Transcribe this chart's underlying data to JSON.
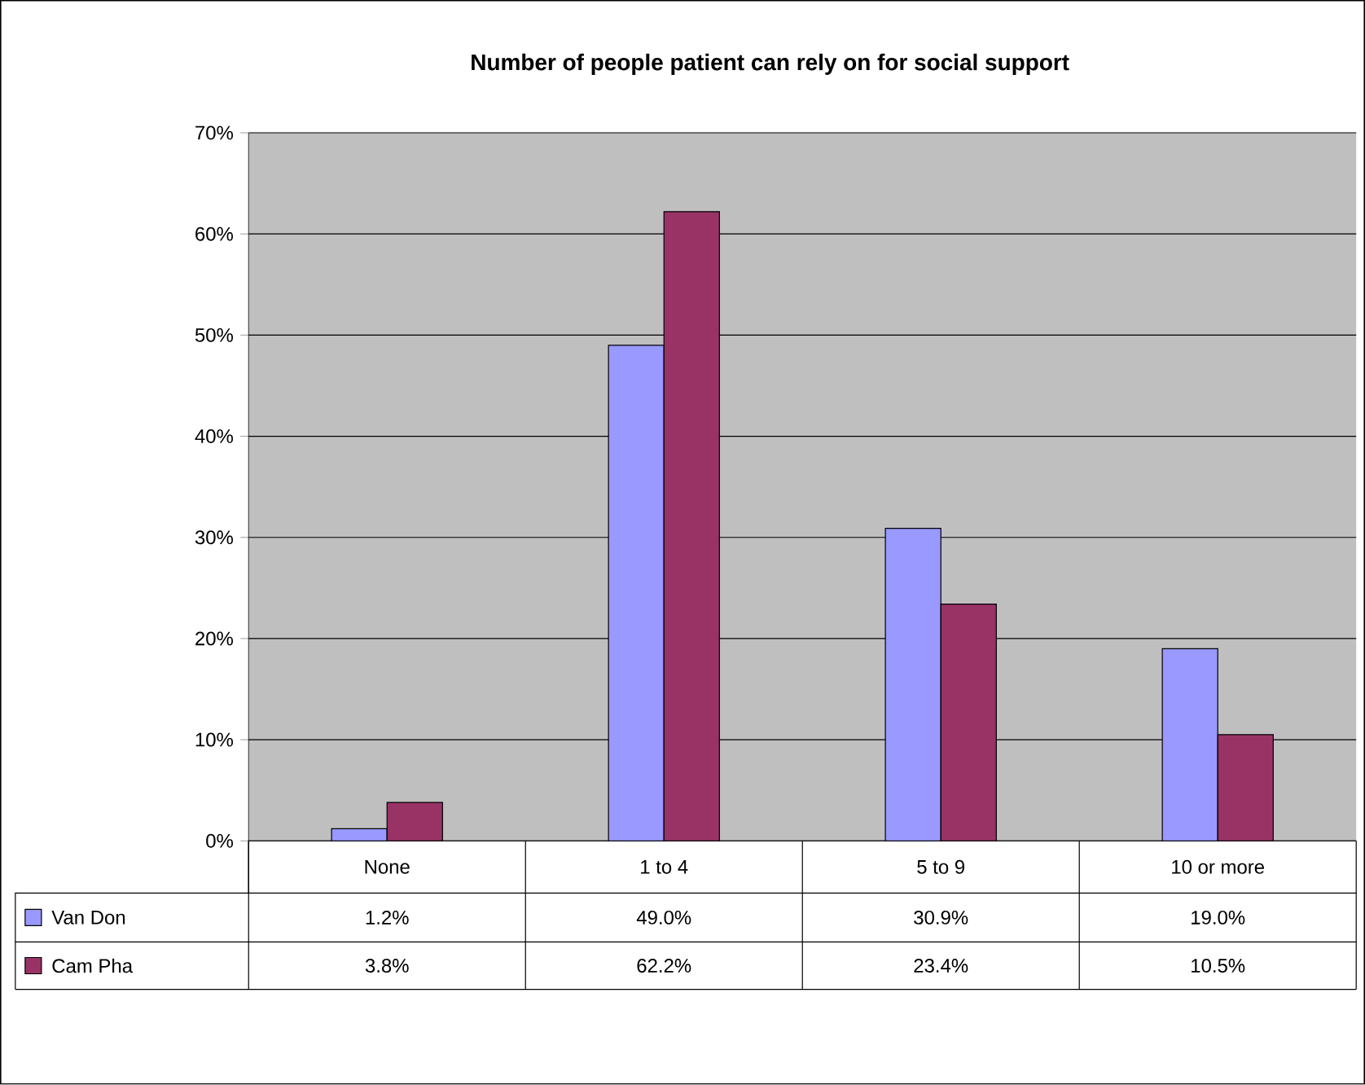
{
  "chart_data": {
    "type": "bar",
    "title": "Number of people patient can rely on for social support",
    "categories": [
      "None",
      "1 to 4",
      "5 to 9",
      "10 or more"
    ],
    "series": [
      {
        "name": "Van Don",
        "color": "#9999ff",
        "values": [
          1.2,
          49.0,
          30.9,
          19.0
        ],
        "value_labels": [
          "1.2%",
          "49.0%",
          "30.9%",
          "19.0%"
        ]
      },
      {
        "name": "Cam Pha",
        "color": "#993366",
        "values": [
          3.8,
          62.2,
          23.4,
          10.5
        ],
        "value_labels": [
          "3.8%",
          "62.2%",
          "23.4%",
          "10.5%"
        ]
      }
    ],
    "ylim": [
      0,
      70
    ],
    "yticks": [
      {
        "value": 0,
        "label": "0%"
      },
      {
        "value": 10,
        "label": "10%"
      },
      {
        "value": 20,
        "label": "20%"
      },
      {
        "value": 30,
        "label": "30%"
      },
      {
        "value": 40,
        "label": "40%"
      },
      {
        "value": 50,
        "label": "50%"
      },
      {
        "value": 60,
        "label": "60%"
      },
      {
        "value": 70,
        "label": "70%"
      }
    ],
    "grid": "y",
    "legend": "bottom"
  }
}
